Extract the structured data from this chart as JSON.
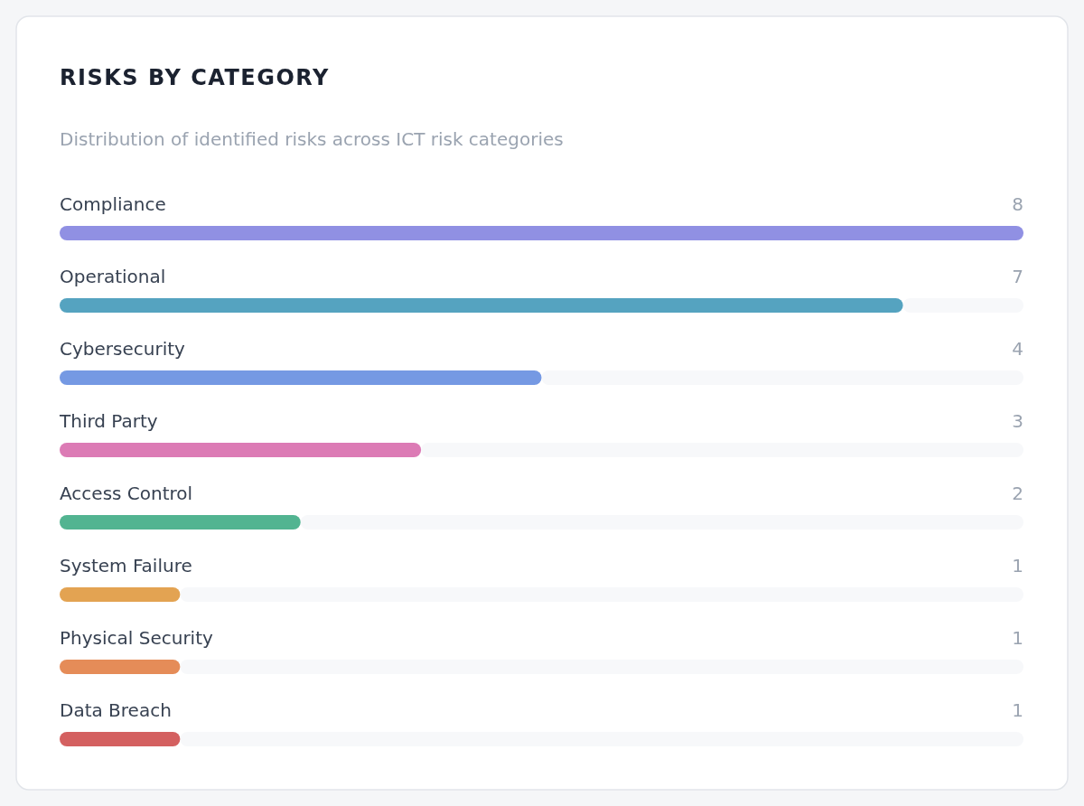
{
  "chart_data": {
    "type": "bar",
    "orientation": "horizontal",
    "title": "RISKS BY CATEGORY",
    "subtitle": "Distribution of identified risks across ICT risk categories",
    "categories": [
      "Compliance",
      "Operational",
      "Cybersecurity",
      "Third Party",
      "Access Control",
      "System Failure",
      "Physical Security",
      "Data Breach"
    ],
    "values": [
      8,
      7,
      4,
      3,
      2,
      1,
      1,
      1
    ],
    "colors": [
      "#9090e3",
      "#55a3c0",
      "#7599e3",
      "#dc7bb5",
      "#52b491",
      "#e3a352",
      "#e58c58",
      "#d46060"
    ],
    "data_labels": true
  }
}
